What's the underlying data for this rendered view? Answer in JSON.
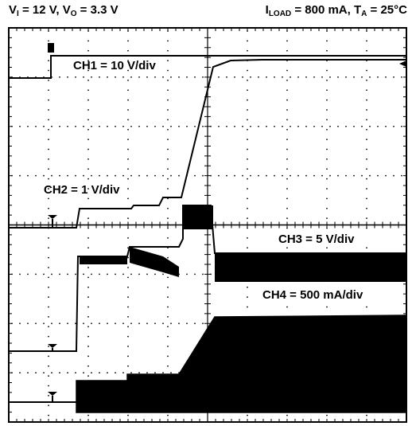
{
  "header": {
    "left": {
      "v": "V",
      "v_sub": "I",
      "eq1": " = 12 V, ",
      "vo": "V",
      "vo_sub": "O",
      "eq2": " = 3.3 V"
    },
    "right": {
      "i": "I",
      "i_sub": "LOAD",
      "eq1": " = 800 mA, ",
      "t": "T",
      "t_sub": "A",
      "eq2": " = 25°C"
    }
  },
  "chart_data": {
    "type": "line",
    "title": "",
    "grid": true,
    "grid_divisions": {
      "x": 10,
      "y": 8
    },
    "series": [
      {
        "name": "CH1 = 10 V/div",
        "label": "CH1 = 10 V/div"
      },
      {
        "name": "CH2 = 1 V/div",
        "label": "CH2 = 1 V/div"
      },
      {
        "name": "CH3 = 5 V/div",
        "label": "CH3 = 5 V/div"
      },
      {
        "name": "CH4 = 500 mA/div",
        "label": "CH4 = 500 mA/div"
      }
    ],
    "colors": {
      "trace": "#000000",
      "grid": "#000000",
      "background": "#ffffff"
    }
  }
}
